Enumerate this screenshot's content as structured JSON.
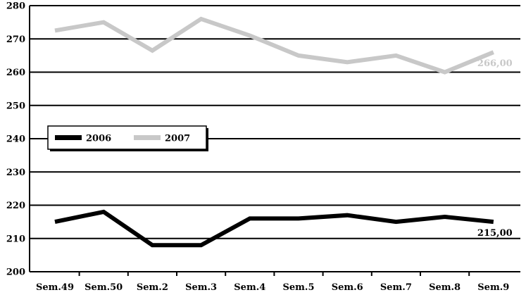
{
  "chart_data": {
    "type": "line",
    "title": "",
    "xlabel": "",
    "ylabel": "",
    "categories": [
      "Sem.49",
      "Sem.50",
      "Sem.2",
      "Sem.3",
      "Sem.4",
      "Sem.5",
      "Sem.6",
      "Sem.7",
      "Sem.8",
      "Sem.9"
    ],
    "ylim": [
      200,
      280
    ],
    "yticks": [
      200,
      210,
      220,
      230,
      240,
      250,
      260,
      270,
      280
    ],
    "grid": true,
    "legend_position": "left",
    "series": [
      {
        "name": "2006",
        "color": "#000000",
        "values": [
          215,
          218,
          208,
          208,
          216,
          216,
          217,
          215,
          216.5,
          215
        ],
        "end_label": "215,00"
      },
      {
        "name": "2007",
        "color": "#c8c8c8",
        "values": [
          272.5,
          275,
          266.5,
          276,
          271,
          265,
          263,
          265,
          260,
          266
        ],
        "end_label": "266,00"
      }
    ]
  }
}
